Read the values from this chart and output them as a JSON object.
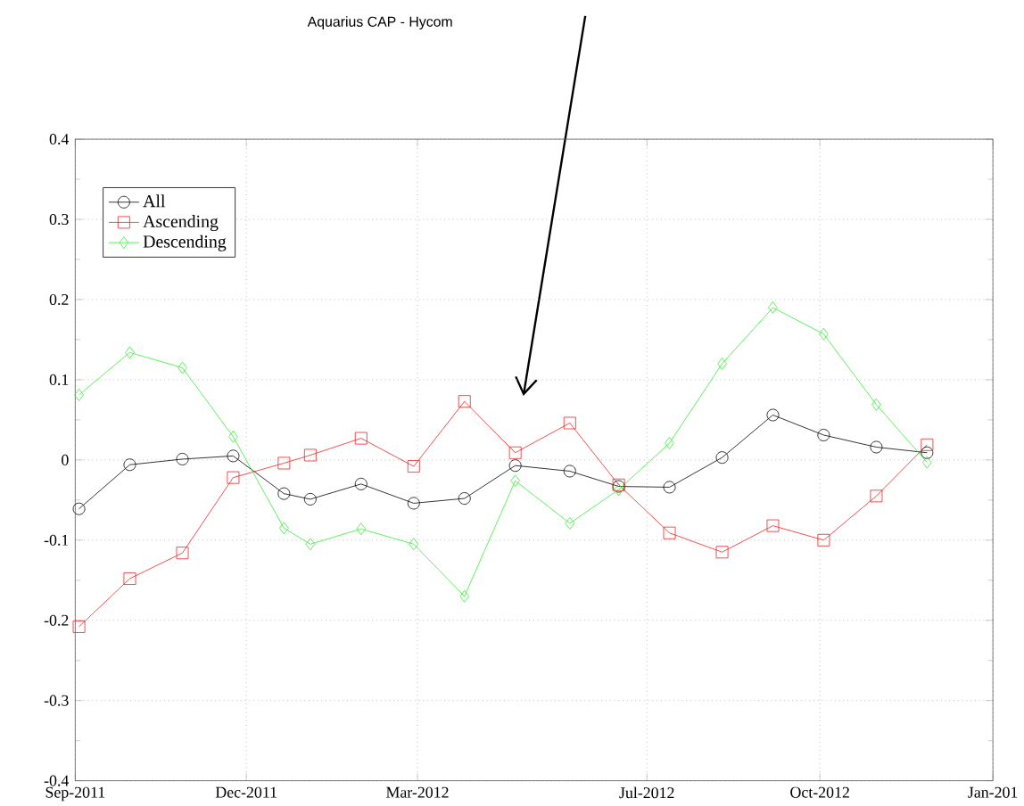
{
  "chart_data": {
    "type": "line",
    "title": "Aquarius CAP - Hycom",
    "x": [
      "2011-09-03",
      "2011-09-30",
      "2011-10-28",
      "2011-11-24",
      "2011-12-21",
      "2012-01-04",
      "2012-01-31",
      "2012-02-28",
      "2012-03-26",
      "2012-04-22",
      "2012-05-21",
      "2012-06-16",
      "2012-07-13",
      "2012-08-10",
      "2012-09-06",
      "2012-10-03",
      "2012-10-31",
      "2012-11-27"
    ],
    "series": [
      {
        "name": "All",
        "color": "#000000",
        "marker": "circle",
        "values": [
          -0.061,
          -0.006,
          0.001,
          0.005,
          -0.042,
          -0.049,
          -0.03,
          -0.054,
          -0.048,
          -0.007,
          -0.014,
          -0.033,
          -0.034,
          0.003,
          0.056,
          0.031,
          0.016,
          0.009
        ]
      },
      {
        "name": "Ascending",
        "color": "#ee2222",
        "marker": "square",
        "values": [
          -0.208,
          -0.148,
          -0.116,
          -0.022,
          -0.004,
          0.006,
          0.027,
          -0.008,
          0.073,
          0.009,
          0.046,
          -0.031,
          -0.091,
          -0.115,
          -0.082,
          -0.1,
          -0.045,
          0.019
        ]
      },
      {
        "name": "Descending",
        "color": "#33ee33",
        "marker": "diamond",
        "values": [
          0.081,
          0.134,
          0.115,
          0.029,
          -0.085,
          -0.105,
          -0.086,
          -0.105,
          -0.17,
          -0.026,
          -0.079,
          -0.037,
          0.021,
          0.12,
          0.19,
          0.157,
          0.069,
          -0.003
        ]
      }
    ],
    "xlim": [
      "2011-09-01",
      "2013-01-01"
    ],
    "xticks": [
      {
        "value": "2011-09-01",
        "label": "Sep-2011"
      },
      {
        "value": "2011-12-01",
        "label": "Dec-2011"
      },
      {
        "value": "2012-03-01",
        "label": "Mar-2012"
      },
      {
        "value": "2012-07-01",
        "label": "Jul-2012"
      },
      {
        "value": "2012-10-01",
        "label": "Oct-2012"
      },
      {
        "value": "2013-01-01",
        "label": "Jan-201"
      }
    ],
    "ylim": [
      -0.4,
      0.4
    ],
    "yticks": [
      -0.4,
      -0.3,
      -0.2,
      -0.1,
      0,
      0.1,
      0.2,
      0.3,
      0.4
    ],
    "grid": true,
    "legend": "top left"
  }
}
